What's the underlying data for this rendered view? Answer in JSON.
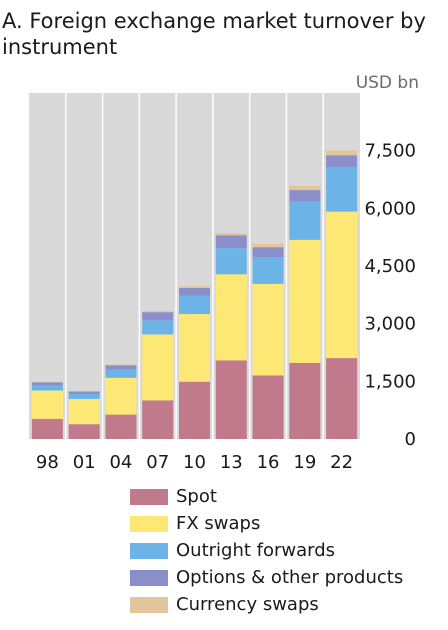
{
  "chart_data": {
    "type": "bar",
    "stacked": true,
    "title": "A. Foreign exchange market turnover by instrument",
    "unit": "USD bn",
    "ylim": [
      0,
      9000
    ],
    "yticks": [
      0,
      1500,
      3000,
      4500,
      6000,
      7500
    ],
    "ytick_labels": [
      "0",
      "1,500",
      "3,000",
      "4,500",
      "6,000",
      "7,500"
    ],
    "grid": "vertical separators",
    "legend_position": "bottom",
    "categories": [
      "98",
      "01",
      "04",
      "07",
      "10",
      "13",
      "16",
      "19",
      "22"
    ],
    "series": [
      {
        "name": "Spot",
        "color": "#c17a8c",
        "values": [
          525,
          385,
          635,
          1005,
          1490,
          2045,
          1655,
          1980,
          2105
        ]
      },
      {
        "name": "FX swaps",
        "color": "#fde875",
        "values": [
          735,
          655,
          955,
          1715,
          1760,
          2240,
          2380,
          3200,
          3810
        ]
      },
      {
        "name": "Outright forwards",
        "color": "#6cb3e8",
        "values": [
          130,
          130,
          210,
          365,
          475,
          680,
          700,
          1000,
          1160
        ]
      },
      {
        "name": "Options & other products",
        "color": "#8a8fca",
        "values": [
          85,
          65,
          120,
          215,
          205,
          335,
          255,
          295,
          305
        ]
      },
      {
        "name": "Currency swaps",
        "color": "#e2c59a",
        "values": [
          10,
          7,
          20,
          30,
          45,
          55,
          85,
          110,
          125
        ]
      }
    ]
  }
}
